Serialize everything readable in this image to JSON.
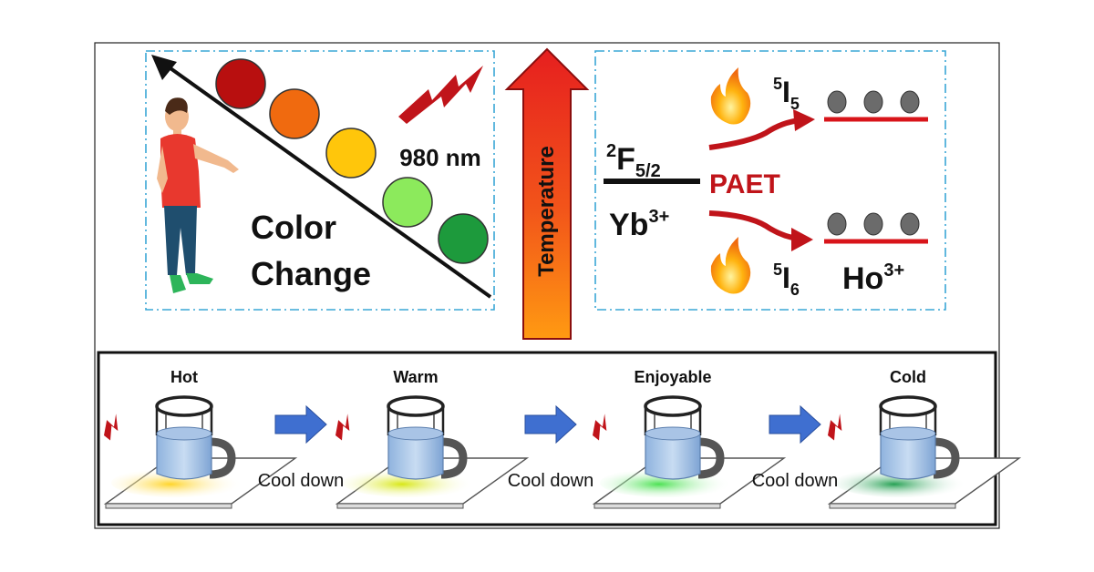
{
  "colors": {
    "red_accent": "#c0141a",
    "dash_box": "#3aa7d6",
    "arrow_blue": "#3f6fd0",
    "glow": [
      "#ffd21e",
      "#d6e60a",
      "#43e04a",
      "#1a9c4a"
    ],
    "color_dots": [
      "#b80f0f",
      "#f06a0f",
      "#ffc60b",
      "#8cea5c",
      "#1d9a3c"
    ]
  },
  "top_left": {
    "label_line1": "Color",
    "label_line2": "Change",
    "laser": "980 nm",
    "icons": [
      "person-figure",
      "lightning-icon",
      "color-dot"
    ]
  },
  "center": {
    "arrow_label": "Temperature"
  },
  "top_right": {
    "yb_level": {
      "base": "F",
      "pre": "2",
      "sub": "5/2"
    },
    "yb_ion": {
      "base": "Yb",
      "sup": "3+"
    },
    "transfer": "PAET",
    "ho_upper": {
      "base": "I",
      "pre": "5",
      "sub": "5"
    },
    "ho_lower": {
      "base": "I",
      "pre": "5",
      "sub": "6"
    },
    "ho_ion": {
      "base": "Ho",
      "sup": "3+"
    },
    "icons": [
      "flame-icon",
      "electron-dot"
    ]
  },
  "bottom": {
    "stages": [
      "Hot",
      "Warm",
      "Enjoyable",
      "Cold"
    ],
    "transition": "Cool down",
    "icons": [
      "mug-icon",
      "plate",
      "lightning-icon",
      "right-arrow-icon"
    ]
  }
}
